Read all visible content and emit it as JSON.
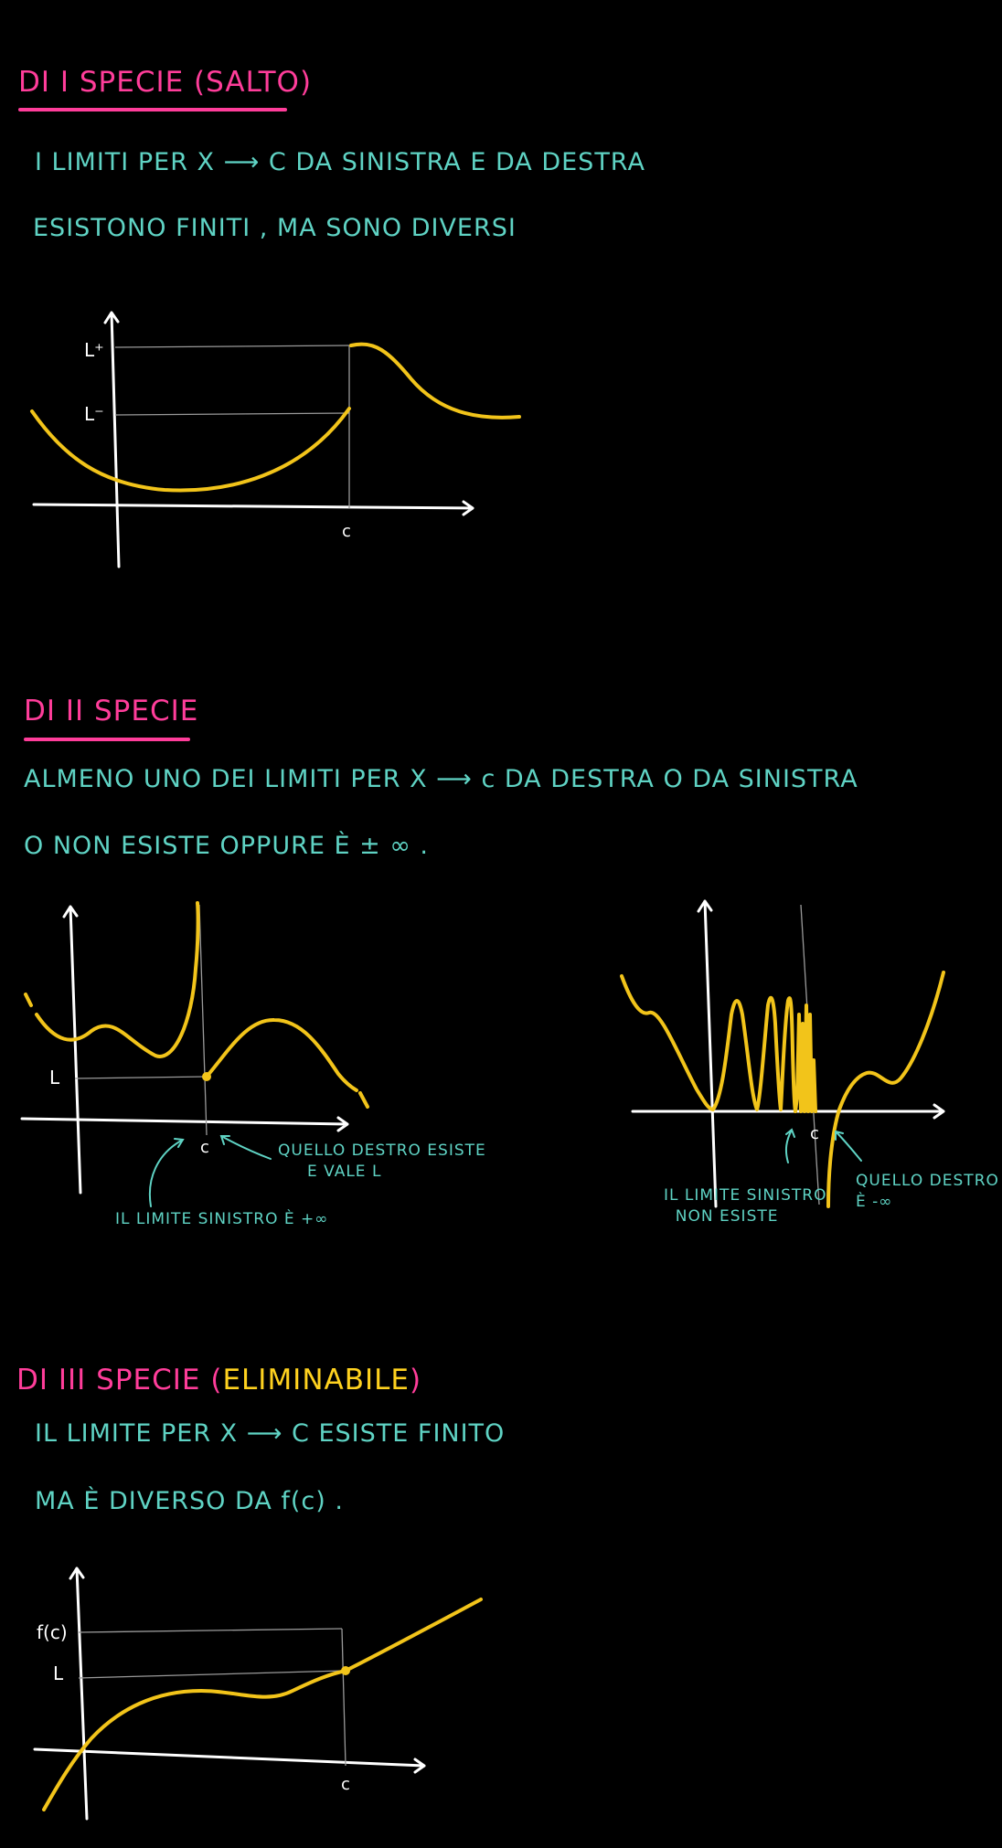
{
  "section1": {
    "title": "DI I SPECIE (SALTO)",
    "line1": "I LIMITI PER X ⟶ C  DA SINISTRA E DA DESTRA",
    "line2": "ESISTONO FINITI , MA SONO DIVERSI",
    "graph": {
      "l_plus": "L⁺",
      "l_minus": "L⁻",
      "c": "c"
    }
  },
  "section2": {
    "title": "DI II SPECIE",
    "line1": "ALMENO UNO DEI LIMITI PER  X ⟶ c  DA DESTRA  O DA SINISTRA",
    "line2": "O  NON ESISTE   OPPURE È  ± ∞ .",
    "graph_left": {
      "l": "L",
      "c": "c",
      "note_right": "QUELLO DESTRO ESISTE\n     E VALE L",
      "note_left": "IL LIMITE SINISTRO È +∞"
    },
    "graph_right": {
      "c": "c",
      "note_left": "IL LIMITE SINISTRO\n  NON ESISTE",
      "note_right": "QUELLO DESTRO\nÈ -∞"
    }
  },
  "section3": {
    "title_prefix": "DI III SPECIE (",
    "title_highlight": "ELIMINABILE",
    "title_suffix": ")",
    "line1": "IL  LIMITE  PER  X ⟶ C   ESISTE   FINITO",
    "line2": "MA  È  DIVERSO  DA   f(c) .",
    "graph": {
      "fc": "f(c)",
      "l": "L",
      "c": "c"
    }
  },
  "colors": {
    "heading": "#ff3d9a",
    "body_text": "#5fd3c4",
    "curve": "#f2c41a",
    "axes": "#ffffff",
    "background": "#000000"
  }
}
